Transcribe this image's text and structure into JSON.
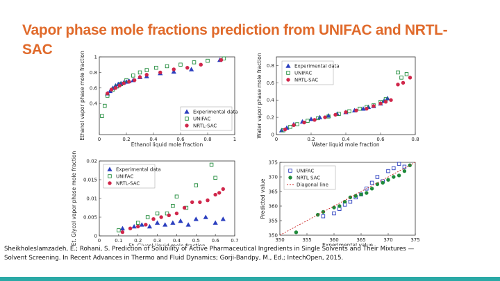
{
  "slide": {
    "title": "Vapor phase mole fractions prediction from UNIFAC and NRTL-SAC",
    "citation": "Sheikholeslamzadeh, E.; Rohani, S. Prediction of Solubility of Active Pharmaceutical Ingredients in Single Solvents and Their Mixtures — Solvent Screening. In Recent Advances in Thermo and Fluid Dynamics; Gorji-Bandpy, M., Ed.; IntechOpen, 2015."
  },
  "colors": {
    "title": "#e06a2b",
    "experimental": "#2b3fbf",
    "unifac": "#1f8a3a",
    "nrtl": "#d0264a",
    "bar": "#2aa9a6",
    "diagonal": "#cc2222"
  },
  "chart_data": [
    {
      "type": "scatter",
      "xlabel": "Ethanol liquid mole fraction",
      "ylabel": "Ethanol vapor phase mole fraction",
      "xlim": [
        0,
        1
      ],
      "ylim": [
        0,
        1
      ],
      "xticks": [
        "0",
        "0.2",
        "0.4",
        "0.6",
        "0.8",
        "1"
      ],
      "yticks": [
        "0.4",
        "0.6",
        "0.8",
        "1"
      ],
      "legend_position": "lower-right",
      "series": [
        {
          "name": "Experimental data",
          "marker": "triangle",
          "x": [
            0.06,
            0.08,
            0.1,
            0.12,
            0.14,
            0.16,
            0.18,
            0.2,
            0.22,
            0.25,
            0.3,
            0.35,
            0.45,
            0.55,
            0.68,
            0.89
          ],
          "y": [
            0.53,
            0.56,
            0.6,
            0.63,
            0.65,
            0.66,
            0.67,
            0.68,
            0.69,
            0.7,
            0.74,
            0.75,
            0.79,
            0.81,
            0.84,
            0.96
          ]
        },
        {
          "name": "UNIFAC",
          "marker": "square",
          "x": [
            0.02,
            0.04,
            0.06,
            0.1,
            0.13,
            0.16,
            0.2,
            0.25,
            0.3,
            0.35,
            0.42,
            0.5,
            0.6,
            0.7,
            0.8,
            0.92
          ],
          "y": [
            0.24,
            0.37,
            0.5,
            0.58,
            0.62,
            0.65,
            0.7,
            0.76,
            0.8,
            0.83,
            0.86,
            0.88,
            0.9,
            0.93,
            0.95,
            0.98
          ]
        },
        {
          "name": "NRTL-SAC",
          "marker": "circle",
          "x": [
            0.06,
            0.09,
            0.12,
            0.15,
            0.18,
            0.22,
            0.26,
            0.3,
            0.35,
            0.45,
            0.55,
            0.65,
            0.75,
            0.9
          ],
          "y": [
            0.53,
            0.58,
            0.6,
            0.63,
            0.66,
            0.68,
            0.7,
            0.74,
            0.77,
            0.8,
            0.84,
            0.86,
            0.9,
            0.96
          ]
        }
      ]
    },
    {
      "type": "scatter",
      "xlabel": "Water liquid mole fraction",
      "ylabel": "Water vapor phase mole fraction",
      "xlim": [
        0,
        0.8
      ],
      "ylim": [
        0,
        0.9
      ],
      "xticks": [
        "0",
        "0.2",
        "0.4",
        "0.6",
        "0.8"
      ],
      "yticks": [
        "0",
        "0.2",
        "0.4",
        "0.6",
        "0.8"
      ],
      "legend_position": "top-left",
      "series": [
        {
          "name": "Experimental data",
          "marker": "triangle",
          "x": [
            0.03,
            0.06,
            0.1,
            0.15,
            0.2,
            0.25,
            0.3,
            0.35,
            0.4,
            0.45,
            0.5,
            0.53,
            0.56,
            0.6,
            0.62,
            0.64
          ],
          "y": [
            0.05,
            0.08,
            0.12,
            0.15,
            0.18,
            0.2,
            0.22,
            0.24,
            0.26,
            0.28,
            0.3,
            0.32,
            0.33,
            0.36,
            0.39,
            0.42
          ]
        },
        {
          "name": "UNIFAC",
          "marker": "square",
          "x": [
            0.04,
            0.08,
            0.12,
            0.18,
            0.24,
            0.3,
            0.36,
            0.42,
            0.48,
            0.52,
            0.56,
            0.6,
            0.63,
            0.7,
            0.72,
            0.75
          ],
          "y": [
            0.05,
            0.09,
            0.12,
            0.16,
            0.19,
            0.21,
            0.24,
            0.27,
            0.3,
            0.32,
            0.34,
            0.38,
            0.41,
            0.72,
            0.66,
            0.7
          ]
        },
        {
          "name": "NRTL-SAC",
          "marker": "circle",
          "x": [
            0.05,
            0.1,
            0.16,
            0.22,
            0.28,
            0.34,
            0.4,
            0.46,
            0.52,
            0.56,
            0.6,
            0.63,
            0.66,
            0.7,
            0.73,
            0.77
          ],
          "y": [
            0.06,
            0.11,
            0.14,
            0.17,
            0.2,
            0.23,
            0.26,
            0.28,
            0.3,
            0.33,
            0.36,
            0.38,
            0.4,
            0.58,
            0.6,
            0.66
          ]
        }
      ]
    },
    {
      "type": "scatter",
      "xlabel": "Et. Glycol liquid mole fraction",
      "ylabel": "Et. Glycol vapor phase mole fraction",
      "xlim": [
        0,
        0.7
      ],
      "ylim": [
        0,
        0.02
      ],
      "xticks": [
        "0",
        "0.1",
        "0.2",
        "0.3",
        "0.4",
        "0.5",
        "0.6",
        "0.7"
      ],
      "yticks": [
        "0",
        "0.005",
        "0.01",
        "0.015",
        "0.02"
      ],
      "legend_position": "top-left",
      "series": [
        {
          "name": "Experimental data",
          "marker": "triangle",
          "x": [
            0.12,
            0.18,
            0.22,
            0.26,
            0.3,
            0.34,
            0.38,
            0.42,
            0.46,
            0.5,
            0.55,
            0.6,
            0.64
          ],
          "y": [
            0.002,
            0.0025,
            0.003,
            0.0025,
            0.0035,
            0.003,
            0.0035,
            0.004,
            0.003,
            0.0045,
            0.005,
            0.0035,
            0.0045
          ]
        },
        {
          "name": "UNIFAC",
          "marker": "square",
          "x": [
            0.1,
            0.2,
            0.25,
            0.3,
            0.35,
            0.38,
            0.4,
            0.45,
            0.5,
            0.58,
            0.6
          ],
          "y": [
            0.0015,
            0.0035,
            0.005,
            0.006,
            0.006,
            0.008,
            0.0105,
            0.0075,
            0.0135,
            0.019,
            0.0155
          ]
        },
        {
          "name": "NRTL-SAC",
          "marker": "circle",
          "x": [
            0.12,
            0.16,
            0.2,
            0.24,
            0.28,
            0.32,
            0.36,
            0.4,
            0.44,
            0.48,
            0.52,
            0.56,
            0.6,
            0.62,
            0.64
          ],
          "y": [
            0.001,
            0.002,
            0.0025,
            0.003,
            0.0045,
            0.005,
            0.0055,
            0.006,
            0.0075,
            0.009,
            0.009,
            0.0095,
            0.011,
            0.0115,
            0.0125
          ]
        }
      ]
    },
    {
      "type": "scatter",
      "xlabel": "Experimental value",
      "ylabel": "Predicted value",
      "xlim": [
        350,
        375
      ],
      "ylim": [
        350,
        375
      ],
      "xticks": [
        "350",
        "355",
        "360",
        "365",
        "370",
        "375"
      ],
      "yticks": [
        "350",
        "355",
        "360",
        "365",
        "370",
        "375"
      ],
      "legend_position": "top-left",
      "series": [
        {
          "name": "UNIFAC",
          "marker": "square",
          "x": [
            358,
            360,
            361,
            362,
            363,
            364,
            365,
            366,
            367,
            368,
            369,
            370,
            371,
            372,
            373
          ],
          "y": [
            356.5,
            357.5,
            359,
            360.5,
            361.5,
            363,
            364,
            366,
            368,
            370,
            368.5,
            372,
            373,
            374.5,
            373.5
          ]
        },
        {
          "name": "NRTL SAC",
          "marker": "circle",
          "x": [
            353,
            357,
            358,
            360,
            361,
            362,
            363,
            364,
            365,
            366,
            367,
            368,
            369,
            370,
            371,
            372,
            373,
            374
          ],
          "y": [
            351,
            357,
            358,
            359.5,
            360,
            361.5,
            363,
            363.5,
            364,
            364.5,
            366,
            367.5,
            368,
            369,
            370,
            370.5,
            372,
            374
          ]
        },
        {
          "name": "Diagonal line",
          "marker": "line",
          "x": [
            350,
            375
          ],
          "y": [
            350,
            375
          ]
        }
      ]
    }
  ]
}
